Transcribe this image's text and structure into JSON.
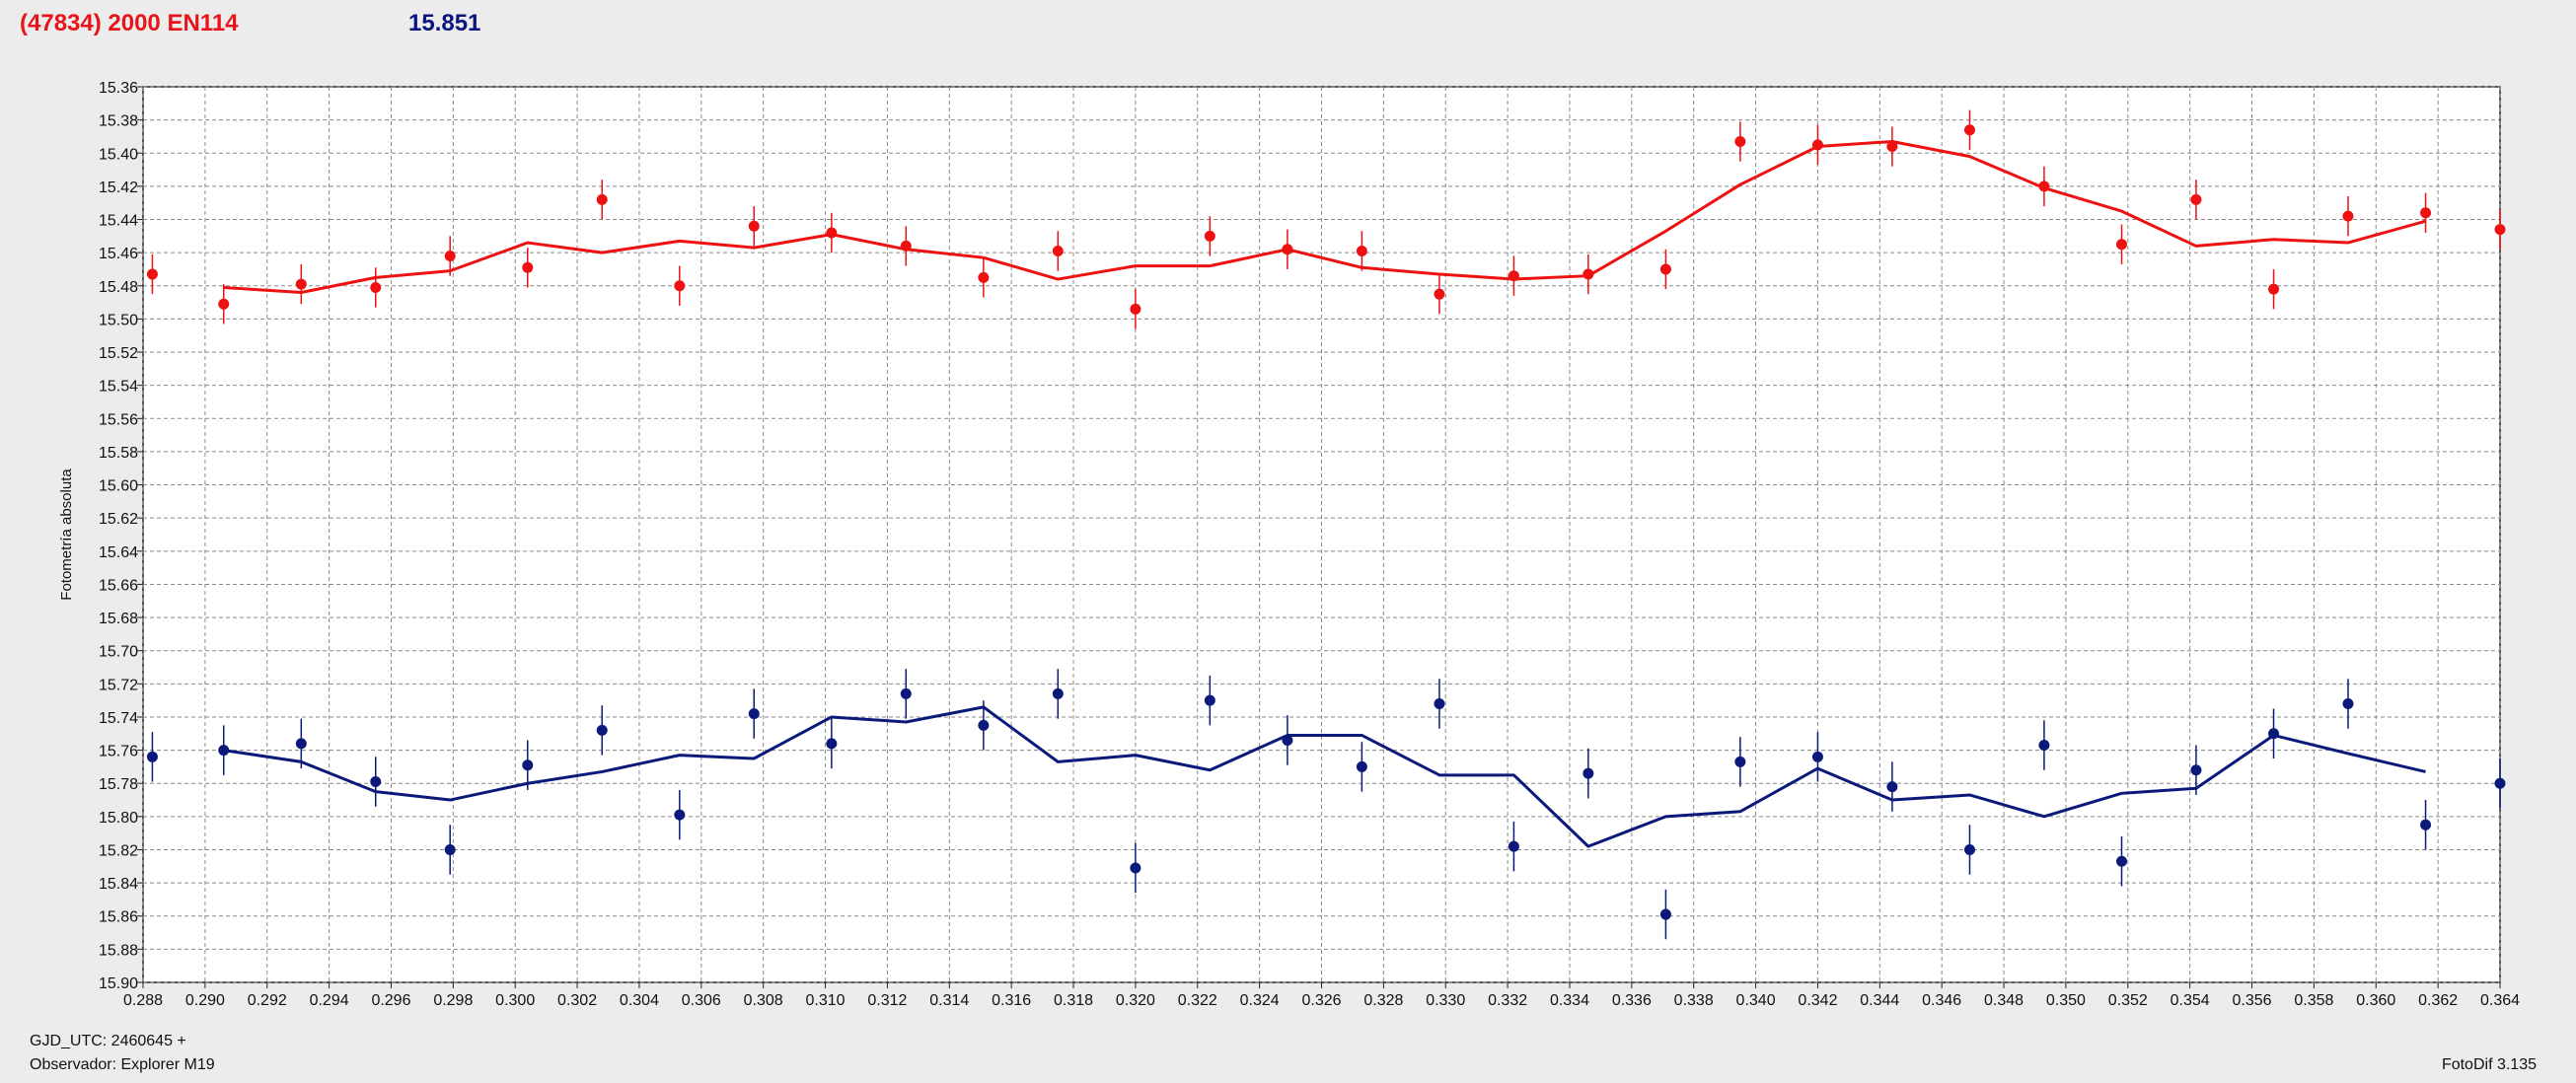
{
  "header": {
    "title": "(47834) 2000 EN114",
    "value": "15.851"
  },
  "footer": {
    "gjd": "GJD_UTC: 2460645 +",
    "observer": "Observador: Explorer M19",
    "version": "FotoDif 3.135"
  },
  "colors": {
    "red_series": "#ee1111",
    "blue_series": "#0b1a7a",
    "grid": "#8a8a8a",
    "plot_background": "#ffffff"
  },
  "chart_data": {
    "type": "line",
    "title": "",
    "xlabel": "",
    "ylabel": "Fotometría absoluta",
    "xlim": [
      0.288,
      0.364
    ],
    "ylim": [
      15.36,
      15.9
    ],
    "y_inverted": true,
    "grid": true,
    "x_ticks": [
      "0.288",
      "0.290",
      "0.292",
      "0.294",
      "0.296",
      "0.298",
      "0.300",
      "0.302",
      "0.304",
      "0.306",
      "0.308",
      "0.310",
      "0.312",
      "0.314",
      "0.316",
      "0.318",
      "0.320",
      "0.322",
      "0.324",
      "0.326",
      "0.328",
      "0.330",
      "0.332",
      "0.334",
      "0.336",
      "0.338",
      "0.340",
      "0.342",
      "0.344",
      "0.346",
      "0.348",
      "0.350",
      "0.352",
      "0.354",
      "0.356",
      "0.358",
      "0.360",
      "0.362",
      "0.364"
    ],
    "y_ticks": [
      "15.36",
      "15.38",
      "15.40",
      "15.42",
      "15.44",
      "15.46",
      "15.48",
      "15.50",
      "15.52",
      "15.54",
      "15.56",
      "15.58",
      "15.60",
      "15.62",
      "15.64",
      "15.66",
      "15.68",
      "15.70",
      "15.72",
      "15.74",
      "15.76",
      "15.78",
      "15.80",
      "15.82",
      "15.84",
      "15.86",
      "15.88",
      "15.90"
    ],
    "series": [
      {
        "points_x": [
          0.2883,
          0.2906,
          0.2931,
          0.2955,
          0.2979,
          0.3004,
          0.3028,
          0.3053,
          0.3077,
          0.3102,
          0.3126,
          0.3151,
          0.3175,
          0.32,
          0.3224,
          0.3249,
          0.3273,
          0.3298,
          0.3322,
          0.3346,
          0.3371,
          0.3395,
          0.342,
          0.3444,
          0.3469,
          0.3493,
          0.3518,
          0.3542,
          0.3567,
          0.3591,
          0.3616,
          0.364
        ],
        "points_y": [
          15.473,
          15.491,
          15.479,
          15.481,
          15.462,
          15.469,
          15.428,
          15.48,
          15.444,
          15.448,
          15.456,
          15.475,
          15.459,
          15.494,
          15.45,
          15.458,
          15.459,
          15.485,
          15.474,
          15.473,
          15.47,
          15.393,
          15.395,
          15.396,
          15.386,
          15.42,
          15.455,
          15.428,
          15.482,
          15.438,
          15.436,
          15.446
        ],
        "error": 0.012,
        "line_x": [
          0.2906,
          0.2931,
          0.2955,
          0.2979,
          0.3004,
          0.3028,
          0.3053,
          0.3077,
          0.3102,
          0.3126,
          0.3151,
          0.3175,
          0.32,
          0.3224,
          0.3249,
          0.3273,
          0.3298,
          0.3322,
          0.3346,
          0.3371,
          0.3395,
          0.342,
          0.3444,
          0.3469,
          0.3493,
          0.3518,
          0.3542,
          0.3567,
          0.3591,
          0.3616
        ],
        "line_y": [
          15.481,
          15.484,
          15.475,
          15.471,
          15.454,
          15.46,
          15.453,
          15.457,
          15.449,
          15.458,
          15.463,
          15.476,
          15.468,
          15.468,
          15.458,
          15.469,
          15.473,
          15.476,
          15.474,
          15.447,
          15.419,
          15.396,
          15.393,
          15.402,
          15.421,
          15.435,
          15.456,
          15.452,
          15.454,
          15.441
        ]
      },
      {
        "points_x": [
          0.2883,
          0.2906,
          0.2931,
          0.2955,
          0.2979,
          0.3004,
          0.3028,
          0.3053,
          0.3077,
          0.3102,
          0.3126,
          0.3151,
          0.3175,
          0.32,
          0.3224,
          0.3249,
          0.3273,
          0.3298,
          0.3322,
          0.3346,
          0.3371,
          0.3395,
          0.342,
          0.3444,
          0.3469,
          0.3493,
          0.3518,
          0.3542,
          0.3567,
          0.3591,
          0.3616,
          0.364
        ],
        "points_y": [
          15.764,
          15.76,
          15.756,
          15.779,
          15.82,
          15.769,
          15.748,
          15.799,
          15.738,
          15.756,
          15.726,
          15.745,
          15.726,
          15.831,
          15.73,
          15.754,
          15.77,
          15.732,
          15.818,
          15.774,
          15.859,
          15.767,
          15.764,
          15.782,
          15.82,
          15.757,
          15.827,
          15.772,
          15.75,
          15.732,
          15.805,
          15.78
        ],
        "error": 0.015,
        "line_x": [
          0.2906,
          0.2931,
          0.2955,
          0.2979,
          0.3004,
          0.3028,
          0.3053,
          0.3077,
          0.3102,
          0.3126,
          0.3151,
          0.3175,
          0.32,
          0.3224,
          0.3249,
          0.3273,
          0.3298,
          0.3322,
          0.3346,
          0.3371,
          0.3395,
          0.342,
          0.3444,
          0.3469,
          0.3493,
          0.3518,
          0.3542,
          0.3567,
          0.3591,
          0.3616
        ],
        "line_y": [
          15.76,
          15.767,
          15.785,
          15.79,
          15.78,
          15.773,
          15.763,
          15.765,
          15.74,
          15.743,
          15.734,
          15.767,
          15.763,
          15.772,
          15.751,
          15.751,
          15.775,
          15.775,
          15.818,
          15.8,
          15.797,
          15.771,
          15.79,
          15.787,
          15.8,
          15.786,
          15.783,
          15.751,
          15.762,
          15.773
        ]
      }
    ]
  }
}
